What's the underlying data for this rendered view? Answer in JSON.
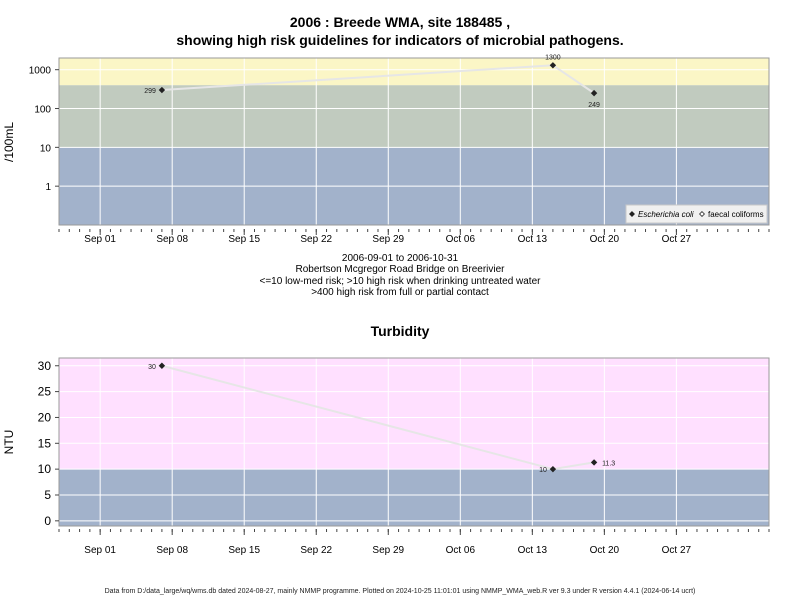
{
  "header": {
    "title_line1": "2006 : Breede WMA, site 188485 ,",
    "title_line2": "showing high risk guidelines for indicators of microbial pathogens."
  },
  "captions": {
    "line1": "2006-09-01 to 2006-10-31",
    "line2": "Robertson Mcgregor Road Bridge on Breerivier",
    "line3": "<=10 low-med risk; >10 high risk when drinking untreated water",
    "line4": ">400 high risk from full or partial contact"
  },
  "footer": "Data from D:/data_large/wq/wms.db dated 2024-08-27, mainly NMMP programme. Plotted on 2024-10-25 11:01:01 using NMMP_WMA_web.R ver 9.3 under R version 4.4.1 (2024-06-14 ucrt)",
  "colors": {
    "low_band": "#a2b2cb",
    "mid_band": "#c1cbbf",
    "high_band": "#fbf6c6",
    "turbidity_high_band": "#ffe0ff",
    "line": "#e6e6e6",
    "grid": "#ffffff",
    "point": "#222222"
  },
  "chart_data": [
    {
      "type": "scatter",
      "title": "2006 : Breede WMA, site 188485 , showing high risk guidelines for indicators of microbial pathogens.",
      "xlabel": "",
      "ylabel": "/100mL",
      "y_scale": "log10",
      "ylim": [
        0.1,
        2000
      ],
      "xlim": [
        "2006-08-28",
        "2006-11-05"
      ],
      "x_ticks": [
        "2006-09-01",
        "2006-09-08",
        "2006-09-15",
        "2006-09-22",
        "2006-09-29",
        "2006-10-06",
        "2006-10-13",
        "2006-10-20",
        "2006-10-27"
      ],
      "x_tick_labels": [
        "Sep 01",
        "Sep 08",
        "Sep 15",
        "Sep 22",
        "Sep 29",
        "Oct 06",
        "Oct 13",
        "Oct 20",
        "Oct 27"
      ],
      "y_ticks": [
        1,
        10,
        100,
        1000
      ],
      "y_tick_labels": [
        "1",
        "10",
        "100",
        "1000"
      ],
      "bands": [
        {
          "from": 0.1,
          "to": 10,
          "color": "#a2b2cb"
        },
        {
          "from": 10,
          "to": 400,
          "color": "#c1cbbf"
        },
        {
          "from": 400,
          "to": 2000,
          "color": "#fbf6c6"
        }
      ],
      "grid": true,
      "legend": {
        "placement": "bottom-right",
        "entries": [
          {
            "label": "Escherichia coli",
            "symbol": "filled-diamond"
          },
          {
            "label": "faecal coliforms",
            "symbol": "open-diamond"
          }
        ]
      },
      "series": [
        {
          "name": "Escherichia coli",
          "points": [
            {
              "x": "2006-09-07",
              "y": 299,
              "label": "299"
            },
            {
              "x": "2006-10-15",
              "y": 1300,
              "label": "1300"
            },
            {
              "x": "2006-10-19",
              "y": 249,
              "label": "249"
            }
          ]
        }
      ]
    },
    {
      "type": "scatter",
      "title": "Turbidity",
      "xlabel": "",
      "ylabel": "NTU",
      "ylim": [
        -1,
        31.5
      ],
      "xlim": [
        "2006-08-28",
        "2006-11-05"
      ],
      "x_ticks": [
        "2006-09-01",
        "2006-09-08",
        "2006-09-15",
        "2006-09-22",
        "2006-09-29",
        "2006-10-06",
        "2006-10-13",
        "2006-10-20",
        "2006-10-27"
      ],
      "x_tick_labels": [
        "Sep 01",
        "Sep 08",
        "Sep 15",
        "Sep 22",
        "Sep 29",
        "Oct 06",
        "Oct 13",
        "Oct 20",
        "Oct 27"
      ],
      "y_ticks": [
        0,
        5,
        10,
        15,
        20,
        25,
        30
      ],
      "y_tick_labels": [
        "0",
        "5",
        "10",
        "15",
        "20",
        "25",
        "30"
      ],
      "bands": [
        {
          "from": -1,
          "to": 10,
          "color": "#a2b2cb"
        },
        {
          "from": 10,
          "to": 31.5,
          "color": "#ffe0ff"
        }
      ],
      "grid": true,
      "series": [
        {
          "name": "",
          "points": [
            {
              "x": "2006-09-07",
              "y": 30,
              "label": "30"
            },
            {
              "x": "2006-10-15",
              "y": 10,
              "label": "10"
            },
            {
              "x": "2006-10-19",
              "y": 11.3,
              "label": "11.3"
            }
          ]
        }
      ]
    }
  ]
}
